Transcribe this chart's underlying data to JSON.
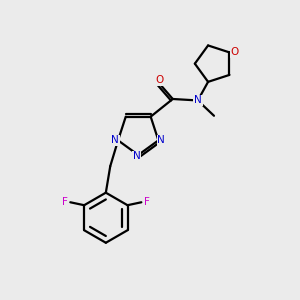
{
  "background_color": "#ebebeb",
  "bond_color": "#000000",
  "atom_colors": {
    "N": "#0000cc",
    "O": "#cc0000",
    "F": "#cc00cc",
    "C": "#000000"
  },
  "figsize": [
    3.0,
    3.0
  ],
  "dpi": 100,
  "xlim": [
    0,
    10
  ],
  "ylim": [
    0,
    10
  ]
}
